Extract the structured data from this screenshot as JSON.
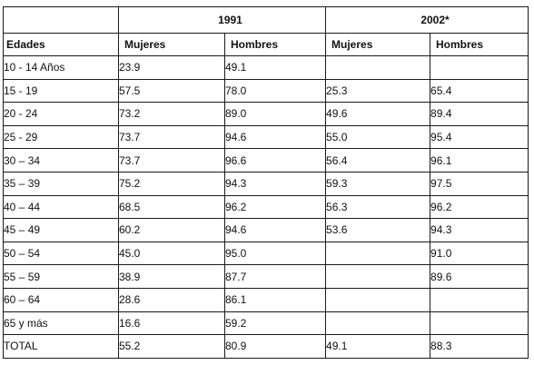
{
  "header": {
    "year_1991": "1991",
    "year_2002": "2002*",
    "col_edades": "Edades",
    "col_mujeres_1991": "Mujeres",
    "col_hombres_1991": "Hombres",
    "col_mujeres_2002": "Mujeres",
    "col_hombres_2002": "Hombres"
  },
  "rows": [
    {
      "edad": "10 - 14 Años",
      "m1991": "23.9",
      "h1991": "49.1",
      "m2002": "",
      "h2002": ""
    },
    {
      "edad": "15 - 19",
      "m1991": "57.5",
      "h1991": "78.0",
      "m2002": "25.3",
      "h2002": "65.4"
    },
    {
      "edad": "20 - 24",
      "m1991": "73.2",
      "h1991": "89.0",
      "m2002": "49.6",
      "h2002": "89.4"
    },
    {
      "edad": "25 - 29",
      "m1991": "73.7",
      "h1991": "94.6",
      "m2002": "55.0",
      "h2002": "95.4"
    },
    {
      "edad": "30 – 34",
      "m1991": "73.7",
      "h1991": "96.6",
      "m2002": "56.4",
      "h2002": "96.1"
    },
    {
      "edad": "35 – 39",
      "m1991": "75.2",
      "h1991": "94.3",
      "m2002": "59.3",
      "h2002": "97.5"
    },
    {
      "edad": "40 – 44",
      "m1991": "68.5",
      "h1991": "96.2",
      "m2002": "56.3",
      "h2002": "96.2"
    },
    {
      "edad": "45 – 49",
      "m1991": "60.2",
      "h1991": "94.6",
      "m2002": "53.6",
      "h2002": "94.3"
    },
    {
      "edad": "50 – 54",
      "m1991": "45.0",
      "h1991": "95.0",
      "m2002": "",
      "h2002": "91.0"
    },
    {
      "edad": "55 – 59",
      "m1991": "38.9",
      "h1991": "87.7",
      "m2002": "",
      "h2002": "89.6"
    },
    {
      "edad": "60 – 64",
      "m1991": "28.6",
      "h1991": "86.1",
      "m2002": "",
      "h2002": ""
    },
    {
      "edad": "65 y más",
      "m1991": "16.6",
      "h1991": "59.2",
      "m2002": "",
      "h2002": ""
    },
    {
      "edad": "TOTAL",
      "m1991": "55.2",
      "h1991": "80.9",
      "m2002": "49.1",
      "h2002": "88.3"
    }
  ]
}
